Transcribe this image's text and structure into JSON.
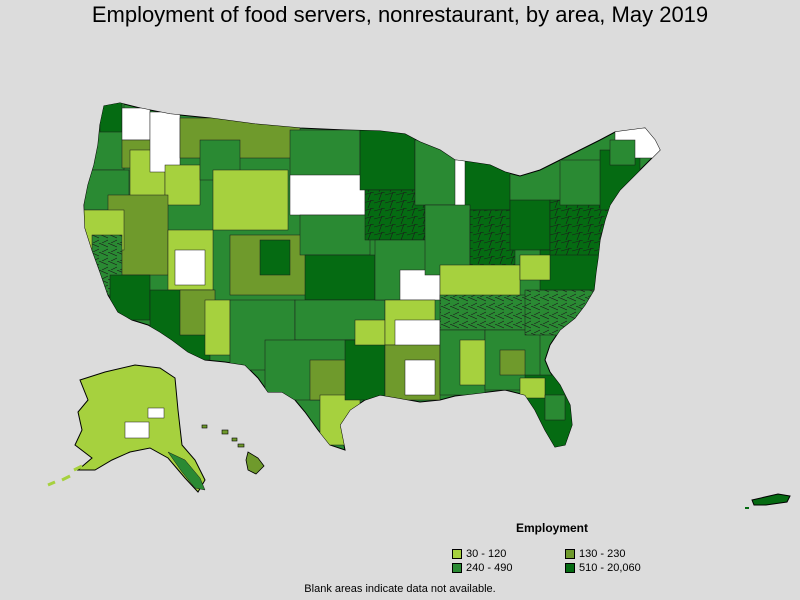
{
  "title": "Employment of food servers, nonrestaurant, by area, May 2019",
  "legend": {
    "title": "Employment",
    "items": [
      {
        "label": "30 - 120",
        "color": "#a6d13e"
      },
      {
        "label": "130 - 230",
        "color": "#6f9a2c"
      },
      {
        "label": "240 - 490",
        "color": "#2a8a33"
      },
      {
        "label": "510 - 20,060",
        "color": "#056b12"
      }
    ]
  },
  "footnote": "Blank areas indicate data not available.",
  "colors": {
    "background": "#dcdcdc",
    "no_data": "#ffffff",
    "border": "#1a1a1a",
    "outline": "#000000"
  }
}
